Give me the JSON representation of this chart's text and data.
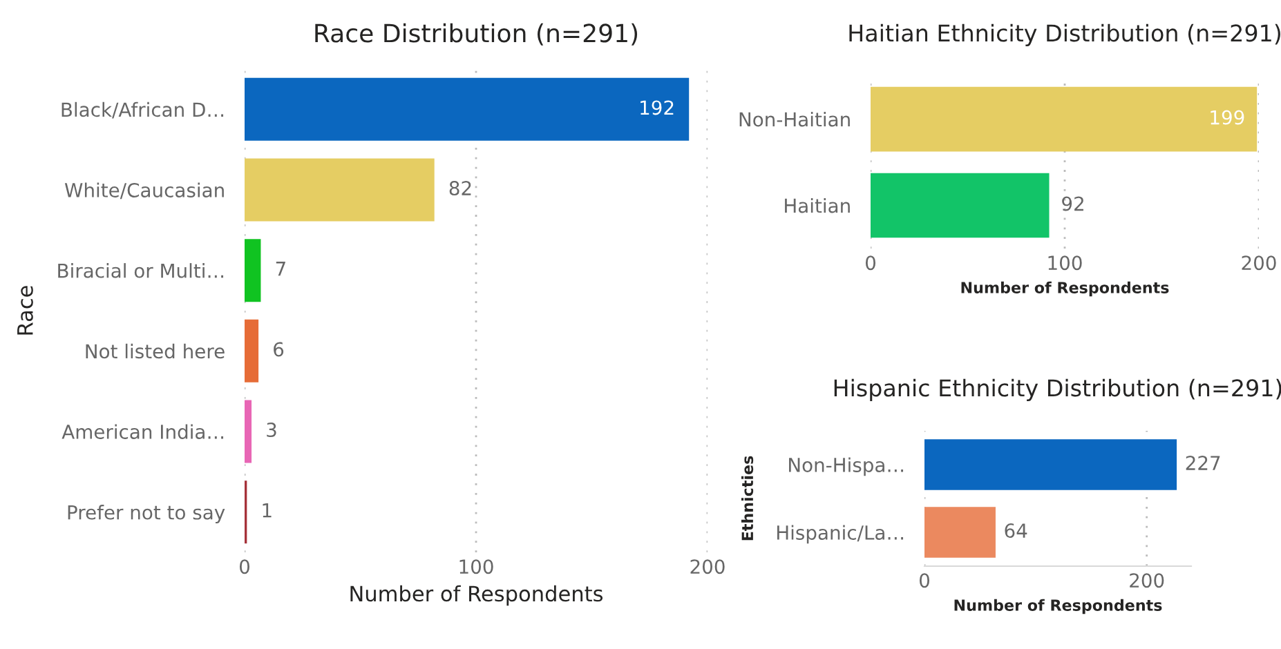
{
  "chart_data": [
    {
      "type": "bar",
      "orientation": "horizontal",
      "title": "Race Distribution (n=291)",
      "xlabel": "Number of Respondents",
      "ylabel": "Race",
      "categories": [
        "Black/African D…",
        "White/Caucasian",
        "Biracial or Multi…",
        "Not listed here",
        "American India…",
        "Prefer not to say"
      ],
      "values": [
        192,
        82,
        7,
        6,
        3,
        1
      ],
      "colors": [
        "#0b67bf",
        "#e5cd63",
        "#10c321",
        "#e66c37",
        "#e866b5",
        "#a6323a"
      ],
      "xlim": [
        0,
        200
      ],
      "xticks": [
        0,
        100,
        200
      ],
      "grid": "x",
      "data_labels": true
    },
    {
      "type": "bar",
      "orientation": "horizontal",
      "title": "Haitian Ethnicity Distribution (n=291)",
      "xlabel": "Number of Respondents",
      "categories": [
        "Non-Haitian",
        "Haitian"
      ],
      "values": [
        199,
        92
      ],
      "colors": [
        "#e5cd63",
        "#12c468"
      ],
      "xlim": [
        0,
        200
      ],
      "xticks": [
        0,
        100,
        200
      ],
      "grid": "x",
      "data_labels": true
    },
    {
      "type": "bar",
      "orientation": "horizontal",
      "title": "Hispanic Ethnicity Distribution (n=291)",
      "xlabel": "Number of Respondents",
      "ylabel": "Ethnicties",
      "categories": [
        "Non-Hispa…",
        "Hispanic/La…"
      ],
      "values": [
        227,
        64
      ],
      "colors": [
        "#0b67bf",
        "#eb895f"
      ],
      "xlim": [
        0,
        240
      ],
      "xticks": [
        0,
        200
      ],
      "grid": "x",
      "data_labels": true
    }
  ]
}
